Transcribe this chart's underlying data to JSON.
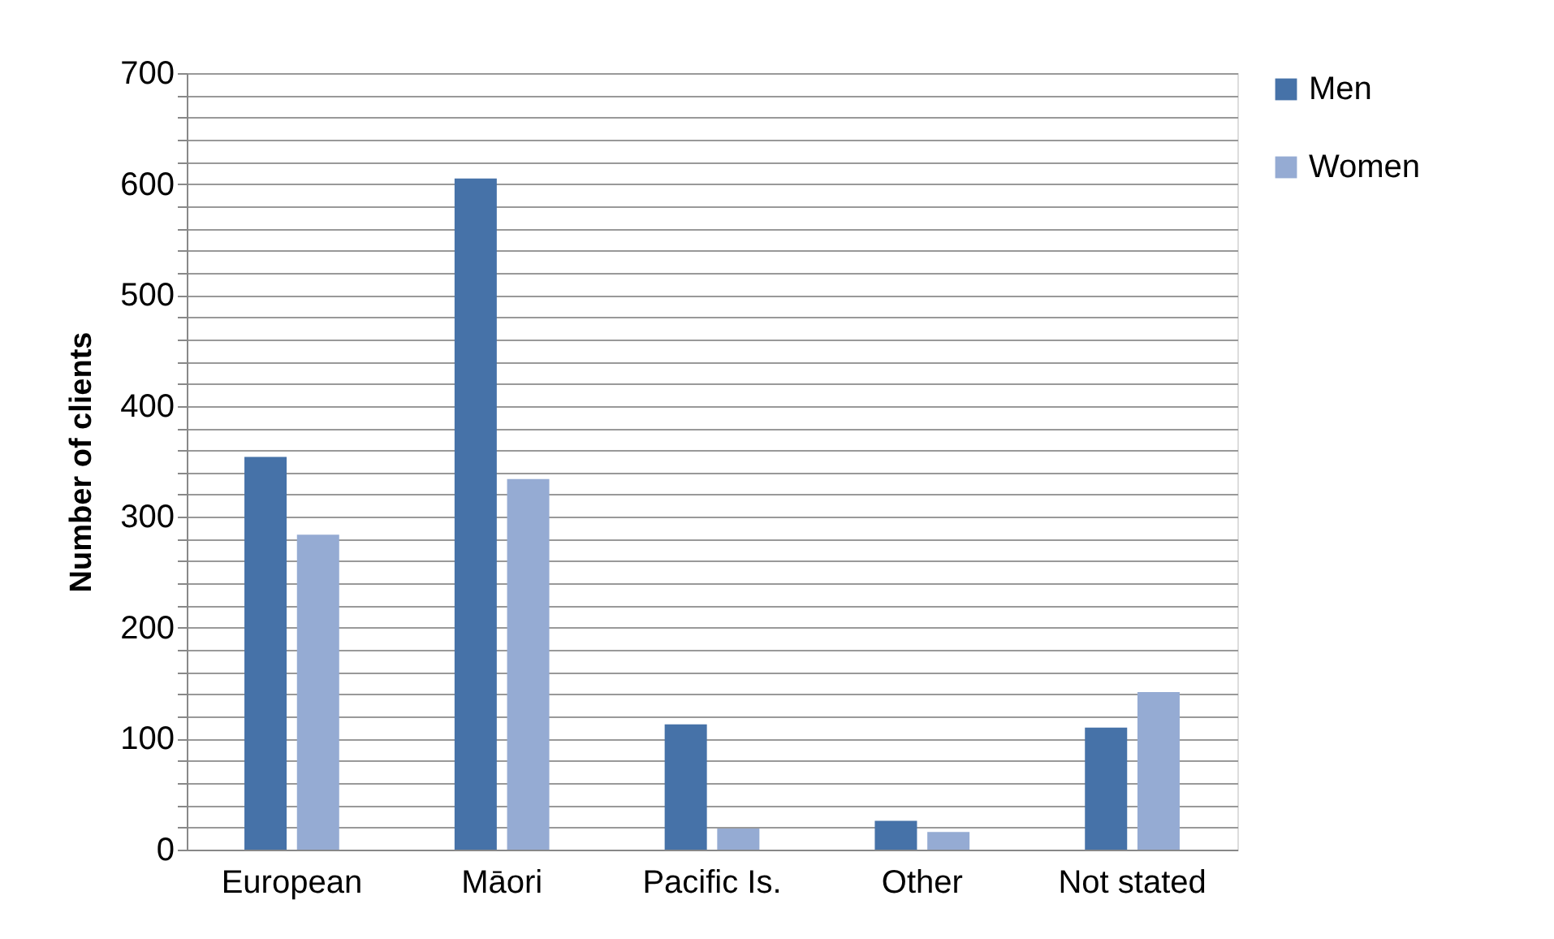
{
  "chart_data": {
    "type": "bar",
    "ylabel": "Number of clients",
    "categories": [
      "European",
      "Māori",
      "Pacific Is.",
      "Other",
      "Not stated"
    ],
    "series": [
      {
        "name": "Men",
        "color": "#4672a8",
        "values": [
          354,
          605,
          113,
          26,
          110
        ]
      },
      {
        "name": "Women",
        "color": "#95abd3",
        "values": [
          284,
          334,
          19,
          16,
          142
        ]
      }
    ],
    "ylim": [
      0,
      700
    ],
    "yticks": [
      0,
      {
        "value": 20,
        "label": null
      },
      {
        "value": 40,
        "label": null
      },
      {
        "value": 60,
        "label": null
      },
      {
        "value": 80,
        "label": null
      },
      100,
      {
        "value": 120,
        "label": null
      },
      {
        "value": 140,
        "label": null
      },
      {
        "value": 160,
        "label": null
      },
      {
        "value": 180,
        "label": null
      },
      200,
      {
        "value": 220,
        "label": null
      },
      {
        "value": 240,
        "label": null
      },
      {
        "value": 260,
        "label": null
      },
      {
        "value": 280,
        "label": null
      },
      300,
      {
        "value": 320,
        "label": null
      },
      {
        "value": 340,
        "label": null
      },
      {
        "value": 360,
        "label": null
      },
      {
        "value": 380,
        "label": null
      },
      400,
      {
        "value": 420,
        "label": null
      },
      {
        "value": 440,
        "label": null
      },
      {
        "value": 460,
        "label": null
      },
      {
        "value": 480,
        "label": null
      },
      500,
      {
        "value": 520,
        "label": null
      },
      {
        "value": 540,
        "label": null
      },
      {
        "value": 560,
        "label": null
      },
      {
        "value": 580,
        "label": null
      },
      600,
      {
        "value": 620,
        "label": null
      },
      {
        "value": 640,
        "label": null
      },
      {
        "value": 660,
        "label": null
      },
      {
        "value": 680,
        "label": null
      },
      700
    ],
    "grid": "y",
    "legend": "right"
  }
}
